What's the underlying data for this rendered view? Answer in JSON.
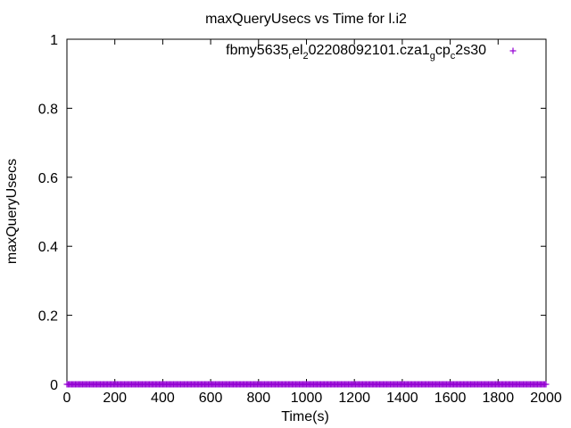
{
  "chart_data": {
    "type": "scatter",
    "title": "maxQueryUsecs vs Time for l.i2",
    "xlabel": "Time(s)",
    "ylabel": "maxQueryUsecs",
    "xlim": [
      0,
      2000
    ],
    "ylim": [
      0,
      1
    ],
    "xticks": [
      0,
      200,
      400,
      600,
      800,
      1000,
      1200,
      1400,
      1600,
      1800,
      2000
    ],
    "yticks": [
      0,
      0.2,
      0.4,
      0.6,
      0.8,
      1
    ],
    "grid": false,
    "legend_position": "top-right",
    "marker": "plus",
    "series": [
      {
        "name": "fbmy5635_rel_o2208092101.cza1_gcp_c2s30",
        "color": "#9400d3",
        "x_start": 0,
        "x_end": 2000,
        "x_step": 5,
        "y_value": 0
      }
    ]
  }
}
